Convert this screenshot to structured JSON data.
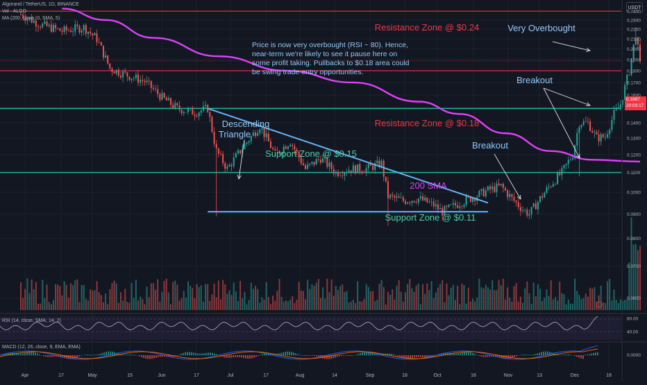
{
  "header": {
    "symbol_line": "Algorand / TetherUS, 1D, BINANCE",
    "volume_line": "Vol · ALGO",
    "sma_line": "MA (200, close, 0, SMA, 5)",
    "currency_button": "USDT"
  },
  "last_price": {
    "value": "0.1887",
    "countdown": "20:03:17"
  },
  "indicators": {
    "rsi_label": "RSI (14, close, SMA, 14, 2)",
    "rsi_ticks": [
      "80.00",
      "40.00"
    ],
    "macd_label": "MACD (12, 26, close, 9, EMA, EMA)",
    "macd_ticks": [
      "0.0000"
    ]
  },
  "colors": {
    "background": "#131722",
    "up": "#26a69a",
    "down": "#ef5350",
    "sma": "#e040fb",
    "resistance": "#b22833",
    "support": "#22ab94",
    "trendline": "#64b5f6",
    "annotation_blue": "#90caf9",
    "annotation_green": "#4dd0a6",
    "annotation_red": "#f23645",
    "annotation_magenta": "#e040fb"
  },
  "chart_data": {
    "type": "candlestick",
    "title": "Algorand / TetherUS, 1D, BINANCE",
    "y_axis": {
      "scale": "log",
      "ticks": [
        "0.2400",
        "0.2300",
        "0.2200",
        "0.2100",
        "0.2000",
        "0.1900",
        "0.1800",
        "0.1700",
        "0.1600",
        "0.1500",
        "0.1400",
        "0.1300",
        "0.1200",
        "0.1100",
        "0.1000",
        "0.0900",
        "0.0800",
        "0.0700",
        "0.0600"
      ],
      "range": [
        0.056,
        0.245
      ]
    },
    "x_axis": {
      "ticks": [
        "Apr",
        "17",
        "May",
        "15",
        "Jun",
        "17",
        "Jul",
        "17",
        "Aug",
        "14",
        "Sep",
        "18",
        "Oct",
        "16",
        "Nov",
        "13",
        "Dec",
        "18"
      ]
    },
    "price_path": [
      {
        "date": "Apr 01",
        "close": 0.236
      },
      {
        "date": "Apr 10",
        "close": 0.225
      },
      {
        "date": "Apr 20",
        "close": 0.218
      },
      {
        "date": "Apr 30",
        "close": 0.222
      },
      {
        "date": "May 06",
        "close": 0.21
      },
      {
        "date": "May 12",
        "close": 0.182
      },
      {
        "date": "May 20",
        "close": 0.176
      },
      {
        "date": "May 28",
        "close": 0.171
      },
      {
        "date": "Jun 05",
        "close": 0.158
      },
      {
        "date": "Jun 12",
        "close": 0.15
      },
      {
        "date": "Jun 20",
        "close": 0.147
      },
      {
        "date": "Jun 26",
        "close": 0.15
      },
      {
        "date": "Jun 30",
        "close": 0.122
      },
      {
        "date": "Jul 05",
        "close": 0.112
      },
      {
        "date": "Jul 12",
        "close": 0.124
      },
      {
        "date": "Jul 20",
        "close": 0.138
      },
      {
        "date": "Jul 27",
        "close": 0.12
      },
      {
        "date": "Aug 03",
        "close": 0.128
      },
      {
        "date": "Aug 10",
        "close": 0.112
      },
      {
        "date": "Aug 17",
        "close": 0.118
      },
      {
        "date": "Aug 24",
        "close": 0.11
      },
      {
        "date": "Aug 31",
        "close": 0.112
      },
      {
        "date": "Sep 07",
        "close": 0.112
      },
      {
        "date": "Sep 14",
        "close": 0.115
      },
      {
        "date": "Sep 17",
        "close": 0.098
      },
      {
        "date": "Sep 24",
        "close": 0.096
      },
      {
        "date": "Oct 01",
        "close": 0.097
      },
      {
        "date": "Oct 08",
        "close": 0.094
      },
      {
        "date": "Oct 12",
        "close": 0.091
      },
      {
        "date": "Oct 20",
        "close": 0.095
      },
      {
        "date": "Oct 27",
        "close": 0.098
      },
      {
        "date": "Nov 02",
        "close": 0.101
      },
      {
        "date": "Nov 08",
        "close": 0.103
      },
      {
        "date": "Nov 13",
        "close": 0.097
      },
      {
        "date": "Nov 18",
        "close": 0.092
      },
      {
        "date": "Nov 21",
        "close": 0.09
      },
      {
        "date": "Nov 26",
        "close": 0.097
      },
      {
        "date": "Dec 01",
        "close": 0.104
      },
      {
        "date": "Dec 06",
        "close": 0.11
      },
      {
        "date": "Dec 11",
        "close": 0.12
      },
      {
        "date": "Dec 14",
        "close": 0.14
      },
      {
        "date": "Dec 18",
        "close": 0.14
      },
      {
        "date": "Dec 22",
        "close": 0.13
      },
      {
        "date": "Dec 26",
        "close": 0.131
      },
      {
        "date": "Dec 30",
        "close": 0.146
      },
      {
        "date": "Jan 02",
        "close": 0.153
      },
      {
        "date": "Jan 06",
        "close": 0.18
      },
      {
        "date": "Jan 09",
        "close": 0.215
      },
      {
        "date": "Jan 10",
        "close": 0.2
      },
      {
        "date": "Jan 11",
        "close": 0.1887
      }
    ],
    "sma_200": [
      {
        "date": "Apr 20",
        "value": 0.243
      },
      {
        "date": "May 10",
        "value": 0.23
      },
      {
        "date": "Jun 01",
        "value": 0.211
      },
      {
        "date": "Jul 01",
        "value": 0.193
      },
      {
        "date": "Aug 01",
        "value": 0.18
      },
      {
        "date": "Sep 01",
        "value": 0.17
      },
      {
        "date": "Oct 01",
        "value": 0.155
      },
      {
        "date": "Oct 20",
        "value": 0.146
      },
      {
        "date": "Nov 10",
        "value": 0.133
      },
      {
        "date": "Dec 01",
        "value": 0.122
      },
      {
        "date": "Dec 20",
        "value": 0.117
      },
      {
        "date": "Jan 11",
        "value": 0.116
      }
    ],
    "horizontal_levels": [
      {
        "value": 0.24,
        "kind": "resistance"
      },
      {
        "value": 0.18,
        "kind": "resistance"
      },
      {
        "value": 0.15,
        "kind": "support"
      },
      {
        "value": 0.11,
        "kind": "support"
      }
    ],
    "trendlines": [
      {
        "from": {
          "date": "Jun 26",
          "value": 0.15
        },
        "to": {
          "date": "Nov 02",
          "value": 0.095
        }
      },
      {
        "from": {
          "date": "Jun 26",
          "value": 0.091
        },
        "to": {
          "date": "Nov 02",
          "value": 0.091
        }
      }
    ],
    "annotations": [
      {
        "text": "Resistance Zone @ $0.24",
        "color": "annotation_red"
      },
      {
        "text": "Resistance Zone @ $0.18",
        "color": "annotation_red"
      },
      {
        "text": "Support Zone @ $0.15",
        "color": "annotation_green"
      },
      {
        "text": "Support Zone @ $0.11",
        "color": "annotation_green"
      },
      {
        "text": "Very Overbought",
        "color": "annotation_blue"
      },
      {
        "text": "Breakout",
        "color": "annotation_blue"
      },
      {
        "text": "Breakout",
        "color": "annotation_blue"
      },
      {
        "text": "Descending",
        "color": "annotation_blue"
      },
      {
        "text": "Triangle",
        "color": "annotation_blue"
      },
      {
        "text": "200 SMA",
        "color": "annotation_magenta"
      }
    ],
    "commentary": [
      "Price is now very overbought (RSI ~ 80). Hence,",
      "near-term we're likely to see it pause here on",
      "some profit taking. Pullbacks to $0.18 area could",
      "be swing trade entry opportunities."
    ],
    "rsi_last": 80
  }
}
